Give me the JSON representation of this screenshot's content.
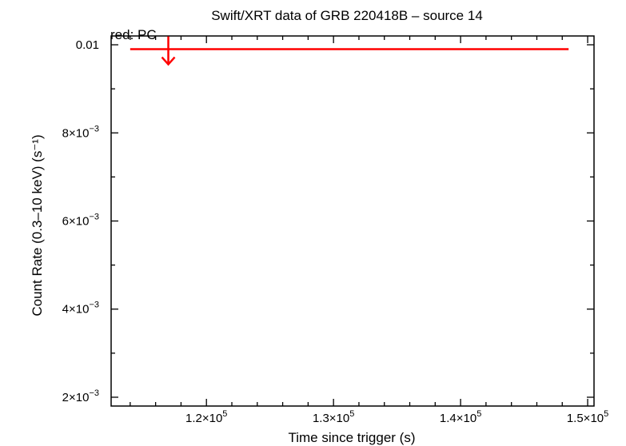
{
  "chart_data": {
    "type": "scatter",
    "title": "Swift/XRT data of GRB 220418B – source 14",
    "subtitle": "red: PC",
    "xlabel": "Time since trigger (s)",
    "ylabel": "Count Rate (0.3–10 keV) (s⁻¹)",
    "xlim": [
      112500,
      150500
    ],
    "ylim": [
      0.0018,
      0.0102
    ],
    "x_scale": "linear",
    "y_scale": "linear",
    "grid": false,
    "x_ticks": [
      {
        "value": 120000,
        "mant": "1.2×10",
        "exp": "5"
      },
      {
        "value": 130000,
        "mant": "1.3×10",
        "exp": "5"
      },
      {
        "value": 140000,
        "mant": "1.4×10",
        "exp": "5"
      },
      {
        "value": 150000,
        "mant": "1.5×10",
        "exp": "5"
      }
    ],
    "y_ticks": [
      {
        "value": 0.002,
        "mant": "2×10",
        "exp": "−3"
      },
      {
        "value": 0.004,
        "mant": "4×10",
        "exp": "−3"
      },
      {
        "value": 0.006,
        "mant": "6×10",
        "exp": "−3"
      },
      {
        "value": 0.008,
        "mant": "8×10",
        "exp": "−3"
      },
      {
        "value": 0.01,
        "mant": "0.01",
        "exp": ""
      }
    ],
    "x_minor_step": 2000,
    "y_minor_step": 0.001,
    "series": [
      {
        "name": "PC",
        "color": "#ff0000",
        "points": [
          {
            "x": 117000,
            "x_start": 114000,
            "x_end": 148500,
            "y": 0.0099,
            "upper_limit": true
          }
        ]
      }
    ]
  }
}
